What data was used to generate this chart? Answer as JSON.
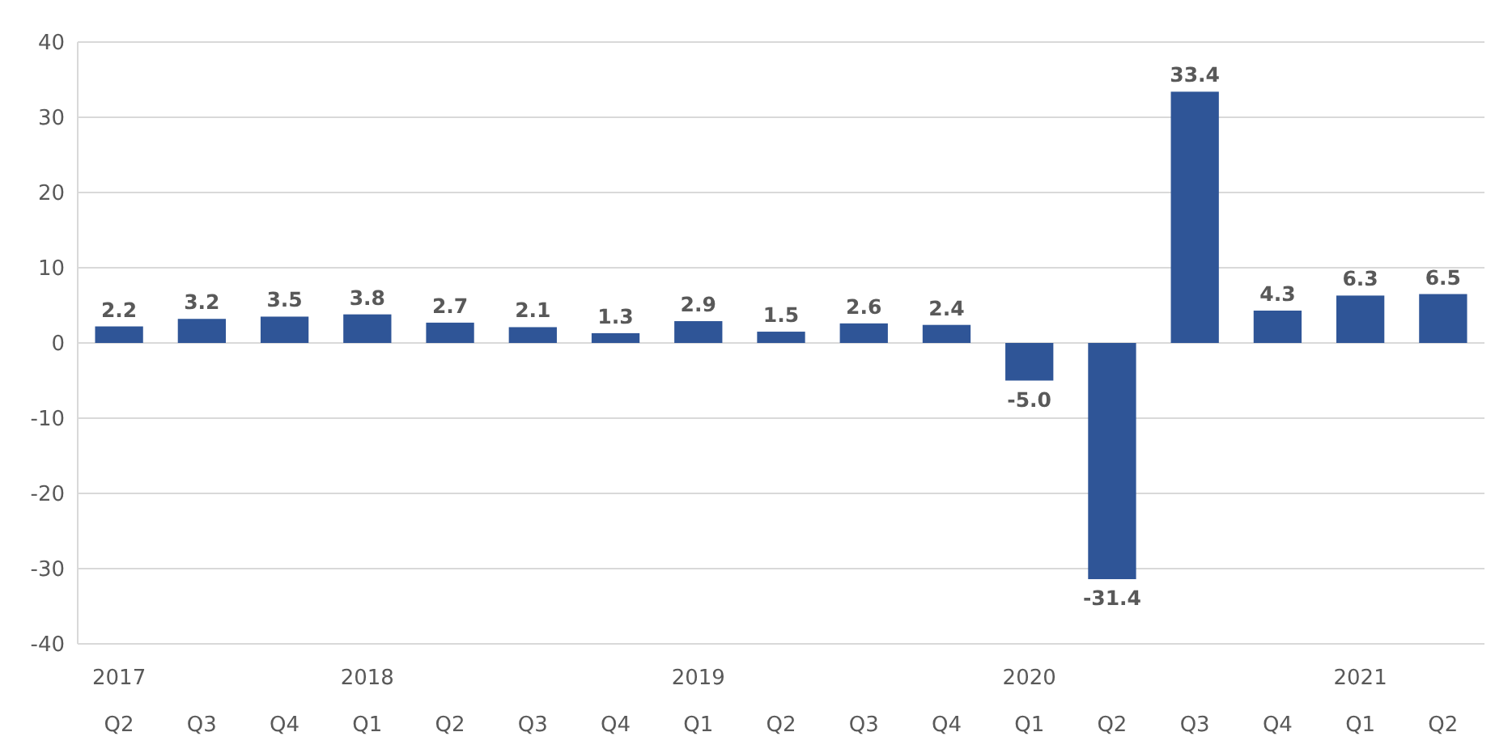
{
  "chart_data": {
    "type": "bar",
    "categories": [
      "2017\nQ2",
      "Q3",
      "Q4",
      "2018\nQ1",
      "Q2",
      "Q3",
      "Q4",
      "2019\nQ1",
      "Q2",
      "Q3",
      "Q4",
      "2020\nQ1",
      "Q2",
      "Q3",
      "Q4",
      "2021\nQ1",
      "Q2"
    ],
    "values": [
      2.2,
      3.2,
      3.5,
      3.8,
      2.7,
      2.1,
      1.3,
      2.9,
      1.5,
      2.6,
      2.4,
      -5.0,
      -31.4,
      33.4,
      4.3,
      6.3,
      6.5
    ],
    "value_labels": [
      "2.2",
      "3.2",
      "3.5",
      "3.8",
      "2.7",
      "2.1",
      "1.3",
      "2.9",
      "1.5",
      "2.6",
      "2.4",
      "-5.0",
      "-31.4",
      "33.4",
      "4.3",
      "6.3",
      "6.5"
    ],
    "color": "#2f5597",
    "ylim": [
      -40,
      40
    ],
    "yticks": [
      -40,
      -30,
      -20,
      -10,
      0,
      10,
      20,
      30,
      40
    ],
    "grid": "y"
  }
}
